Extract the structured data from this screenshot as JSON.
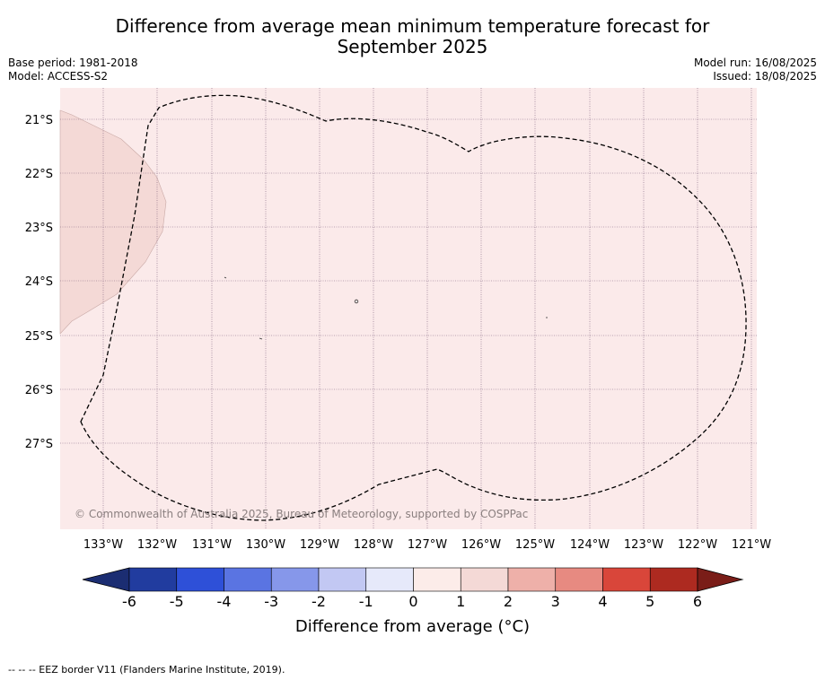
{
  "header": {
    "title_line1": "Difference from average mean minimum temperature forecast for",
    "title_line2": "September 2025",
    "base_period": "Base period: 1981-2018",
    "model": "Model: ACCESS-S2",
    "model_run": "Model run: 16/08/2025",
    "issued": "Issued: 18/08/2025"
  },
  "map": {
    "background_color": "#fbeaea",
    "warmer_region_color": "#f4d9d6",
    "lat_labels": [
      "21°S",
      "22°S",
      "23°S",
      "24°S",
      "25°S",
      "26°S",
      "27°S"
    ],
    "lon_labels": [
      "133°W",
      "132°W",
      "131°W",
      "130°W",
      "129°W",
      "128°W",
      "127°W",
      "126°W",
      "125°W",
      "124°W",
      "123°W",
      "122°W",
      "121°W"
    ],
    "copyright": "© Commonwealth of Australia 2025, Bureau of Meteorology, supported by COSPPac"
  },
  "colorbar": {
    "label": "Difference from average (°C)",
    "ticks": [
      "-6",
      "-5",
      "-4",
      "-3",
      "-2",
      "-1",
      "0",
      "1",
      "2",
      "3",
      "4",
      "5",
      "6"
    ],
    "colors": [
      "#213c9f",
      "#2e50d8",
      "#5a74e2",
      "#8697ea",
      "#c2c8f3",
      "#e6e9fa",
      "#fcece9",
      "#f4d9d6",
      "#eeb0a9",
      "#e78a81",
      "#d9463a",
      "#ad2a20"
    ],
    "under_color": "#1b2d72",
    "over_color": "#7a1d18"
  },
  "footnote": "-- -- -- EEZ border V11 (Flanders Marine Institute, 2019)."
}
